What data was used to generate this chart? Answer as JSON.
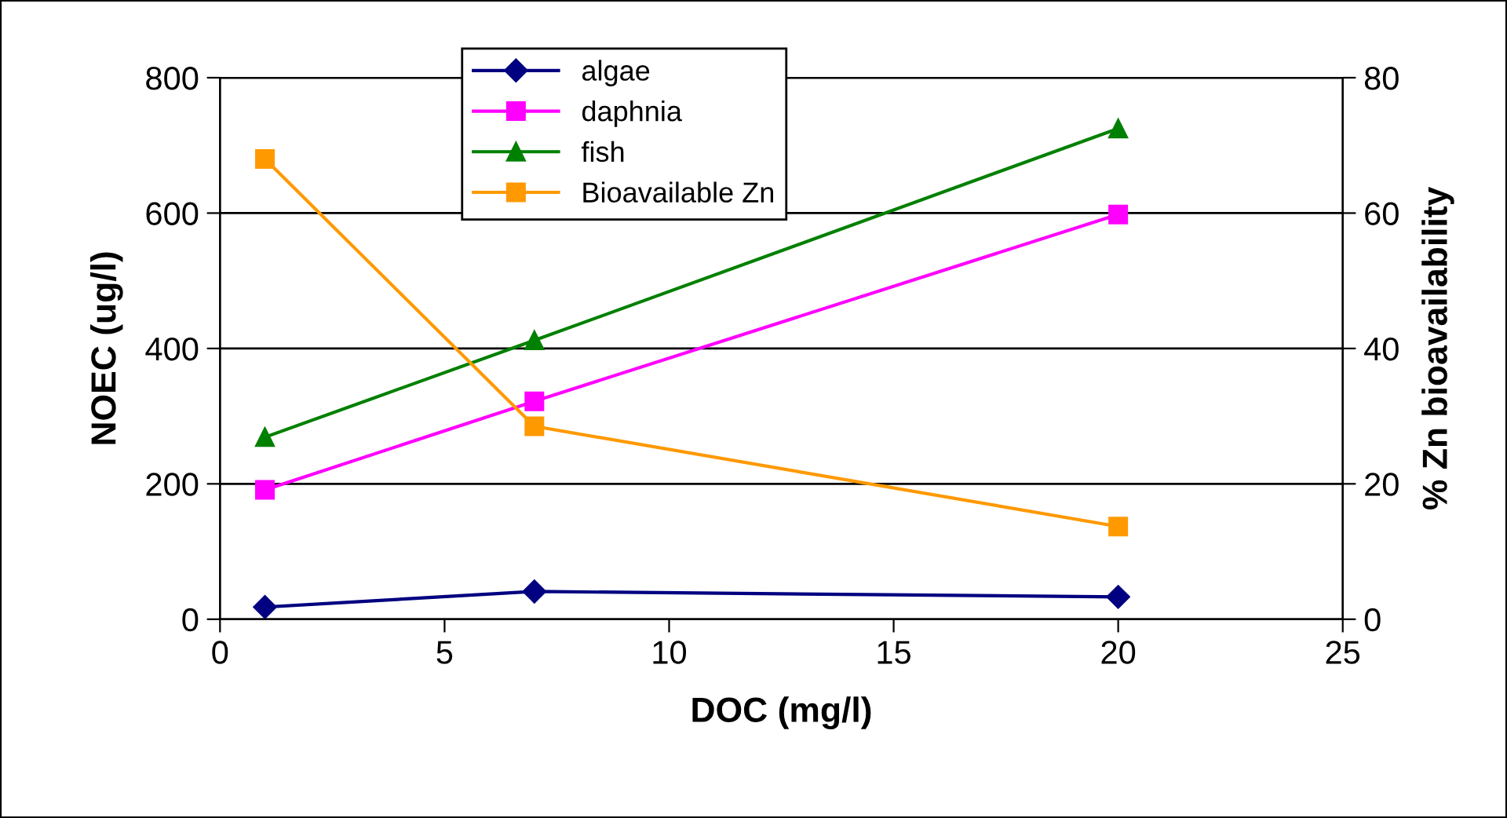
{
  "chart_data": {
    "type": "line",
    "xlabel": "DOC (mg/l)",
    "ylabel": "NOEC (ug/l)",
    "y2label": "% Zn bioavailability",
    "x": [
      1,
      7,
      20
    ],
    "series": [
      {
        "name": "algae",
        "color": "#000080",
        "marker": "diamond",
        "values": [
          18,
          41,
          33
        ]
      },
      {
        "name": "daphnia",
        "color": "#ff00ff",
        "marker": "square",
        "values": [
          191,
          322,
          598
        ]
      },
      {
        "name": "fish",
        "color": "#008000",
        "marker": "triangle",
        "values": [
          269,
          412,
          725
        ]
      },
      {
        "name": "Bioavailable Zn",
        "color": "#ff9900",
        "marker": "square",
        "axis": "y2",
        "values": [
          68,
          28.5,
          13.7
        ]
      }
    ],
    "xlim": [
      0,
      25
    ],
    "xticks": [
      0,
      5,
      10,
      15,
      20,
      25
    ],
    "ylim": [
      0,
      800
    ],
    "yticks": [
      0,
      200,
      400,
      600,
      800
    ],
    "y2lim": [
      0,
      80
    ],
    "y2ticks": [
      0,
      20,
      40,
      60,
      80
    ],
    "grid": "y",
    "legend": "top"
  }
}
